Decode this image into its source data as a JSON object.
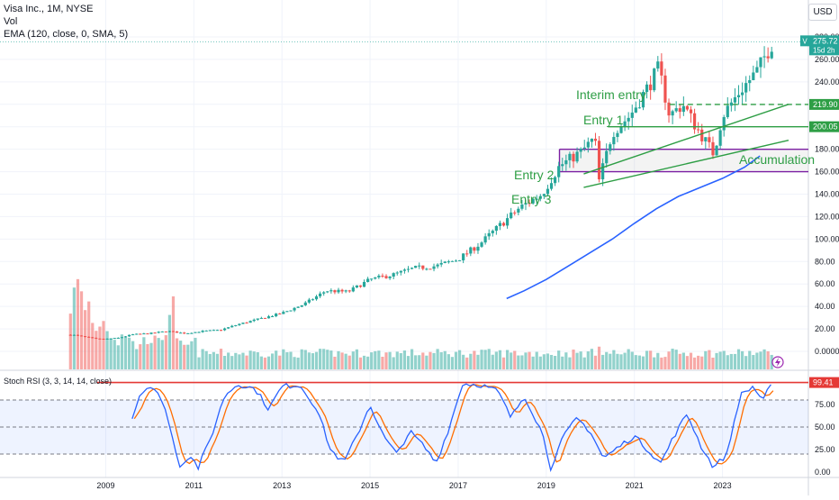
{
  "header": {
    "symbol_line": "Visa Inc., 1M, NYSE",
    "volume_label": "Vol",
    "ema_label": "EMA (120, close, 0, SMA, 5)",
    "currency": "USD"
  },
  "price_tag": {
    "ticker": "V",
    "price": "275.72",
    "countdown": "15d 2h"
  },
  "level_tags": [
    "219.90",
    "200.05"
  ],
  "rsi_tag": "99.41",
  "stoch_label": "Stoch RSI (3, 3, 14, 14, close)",
  "annotations": {
    "interim": "Interim entry",
    "entry1": "Entry 1",
    "entry2": "Entry 2",
    "entry3": "Entry 3",
    "accumulation": "Accumulation"
  },
  "colors": {
    "up": "#26a69a",
    "down": "#ef5350",
    "ema": "#2962ff",
    "trend": "#2e9e45",
    "box": "#7b1fa2",
    "rsi_k": "#2962ff",
    "rsi_d": "#ff6d00",
    "rsi_cap": "#e53935"
  },
  "chart_data": {
    "type": "candlestick",
    "price_axis_ticks": [
      "280.00",
      "260.00",
      "240.00",
      "220.00",
      "200.00",
      "180.00",
      "160.00",
      "140.00",
      "120.00",
      "100.00",
      "80.00",
      "60.00",
      "40.00",
      "20.00",
      "0.0000"
    ],
    "rsi_axis_ticks": [
      "75.00",
      "50.00",
      "25.00",
      "0.00"
    ],
    "x_ticks": [
      "2009",
      "2011",
      "2013",
      "2015",
      "2017",
      "2019",
      "2021",
      "2023"
    ],
    "close_anchors": [
      [
        2008.2,
        15
      ],
      [
        2008.5,
        13
      ],
      [
        2008.8,
        11
      ],
      [
        2009.0,
        11
      ],
      [
        2009.3,
        12
      ],
      [
        2009.6,
        15
      ],
      [
        2010.0,
        16
      ],
      [
        2010.4,
        18
      ],
      [
        2010.8,
        16
      ],
      [
        2011.2,
        18
      ],
      [
        2011.6,
        19
      ],
      [
        2012.0,
        24
      ],
      [
        2012.5,
        29
      ],
      [
        2013.0,
        34
      ],
      [
        2013.5,
        42
      ],
      [
        2014.0,
        54
      ],
      [
        2014.5,
        53
      ],
      [
        2015.0,
        64
      ],
      [
        2015.5,
        68
      ],
      [
        2016.0,
        74
      ],
      [
        2016.5,
        76
      ],
      [
        2017.0,
        82
      ],
      [
        2017.5,
        96
      ],
      [
        2018.0,
        114
      ],
      [
        2018.4,
        128
      ],
      [
        2018.9,
        140
      ],
      [
        2019.3,
        165
      ],
      [
        2019.8,
        178
      ],
      [
        2020.1,
        190
      ],
      [
        2020.2,
        152
      ],
      [
        2020.5,
        195
      ],
      [
        2020.9,
        210
      ],
      [
        2021.3,
        235
      ],
      [
        2021.55,
        252
      ],
      [
        2021.8,
        210
      ],
      [
        2022.1,
        220
      ],
      [
        2022.4,
        200
      ],
      [
        2022.8,
        176
      ],
      [
        2023.0,
        210
      ],
      [
        2023.4,
        232
      ],
      [
        2023.8,
        250
      ],
      [
        2024.0,
        266
      ],
      [
        2024.15,
        275.72
      ]
    ],
    "ema_points": [
      [
        2018.1,
        47
      ],
      [
        2018.5,
        54
      ],
      [
        2019.0,
        64
      ],
      [
        2019.5,
        76
      ],
      [
        2020.0,
        88
      ],
      [
        2020.5,
        100
      ],
      [
        2021.0,
        114
      ],
      [
        2021.5,
        127
      ],
      [
        2022.0,
        138
      ],
      [
        2022.5,
        146
      ],
      [
        2023.0,
        154
      ],
      [
        2023.5,
        164
      ],
      [
        2023.85,
        174
      ]
    ],
    "volume_relative": [
      [
        2008.2,
        0.7
      ],
      [
        2008.3,
        0.85
      ],
      [
        2008.4,
        1.0
      ],
      [
        2008.5,
        0.6
      ],
      [
        2008.6,
        0.8
      ],
      [
        2008.7,
        0.5
      ],
      [
        2008.8,
        0.45
      ],
      [
        2008.9,
        0.55
      ],
      [
        2009.0,
        0.5
      ],
      [
        2009.1,
        0.4
      ],
      [
        2009.2,
        0.35
      ],
      [
        2009.3,
        0.3
      ],
      [
        2009.4,
        0.45
      ],
      [
        2009.5,
        0.35
      ],
      [
        2009.6,
        0.3
      ],
      [
        2009.7,
        0.25
      ],
      [
        2009.8,
        0.3
      ],
      [
        2010.0,
        0.35
      ],
      [
        2010.2,
        0.3
      ],
      [
        2010.4,
        0.45
      ],
      [
        2010.5,
        0.9
      ],
      [
        2010.6,
        0.3
      ],
      [
        2010.8,
        0.25
      ],
      [
        2011.0,
        0.3
      ]
    ],
    "stoch_k_anchors": [
      [
        2009.6,
        60
      ],
      [
        2009.8,
        90
      ],
      [
        2010.0,
        95
      ],
      [
        2010.3,
        80
      ],
      [
        2010.5,
        40
      ],
      [
        2010.7,
        5
      ],
      [
        2010.9,
        20
      ],
      [
        2011.1,
        5
      ],
      [
        2011.4,
        40
      ],
      [
        2011.7,
        85
      ],
      [
        2012.0,
        98
      ],
      [
        2012.4,
        92
      ],
      [
        2012.7,
        70
      ],
      [
        2013.0,
        95
      ],
      [
        2013.4,
        97
      ],
      [
        2013.8,
        70
      ],
      [
        2014.1,
        25
      ],
      [
        2014.4,
        10
      ],
      [
        2014.7,
        40
      ],
      [
        2015.0,
        75
      ],
      [
        2015.3,
        40
      ],
      [
        2015.6,
        20
      ],
      [
        2015.9,
        45
      ],
      [
        2016.2,
        30
      ],
      [
        2016.5,
        10
      ],
      [
        2016.8,
        50
      ],
      [
        2017.1,
        98
      ],
      [
        2017.5,
        97
      ],
      [
        2017.9,
        90
      ],
      [
        2018.2,
        60
      ],
      [
        2018.5,
        85
      ],
      [
        2018.9,
        45
      ],
      [
        2019.1,
        5
      ],
      [
        2019.4,
        40
      ],
      [
        2019.7,
        60
      ],
      [
        2020.0,
        45
      ],
      [
        2020.3,
        15
      ],
      [
        2020.7,
        30
      ],
      [
        2021.0,
        40
      ],
      [
        2021.3,
        25
      ],
      [
        2021.6,
        10
      ],
      [
        2021.9,
        40
      ],
      [
        2022.2,
        65
      ],
      [
        2022.5,
        30
      ],
      [
        2022.8,
        5
      ],
      [
        2023.1,
        20
      ],
      [
        2023.4,
        85
      ],
      [
        2023.7,
        95
      ],
      [
        2023.9,
        80
      ],
      [
        2024.15,
        99
      ]
    ],
    "trendlines": [
      {
        "name": "entry2-line",
        "from": [
          2019.85,
          158
        ],
        "to": [
          2024.5,
          220
        ]
      },
      {
        "name": "entry3-line",
        "from": [
          2019.85,
          146
        ],
        "to": [
          2024.5,
          188
        ]
      }
    ],
    "levels": {
      "interim_entry": 219.9,
      "entry1": 200.05,
      "accumulation_top": 180,
      "accumulation_bottom": 160,
      "rsi_cap": 99.41
    },
    "rsi_bands": {
      "upper": 80,
      "middle": 50,
      "lower": 20
    }
  }
}
